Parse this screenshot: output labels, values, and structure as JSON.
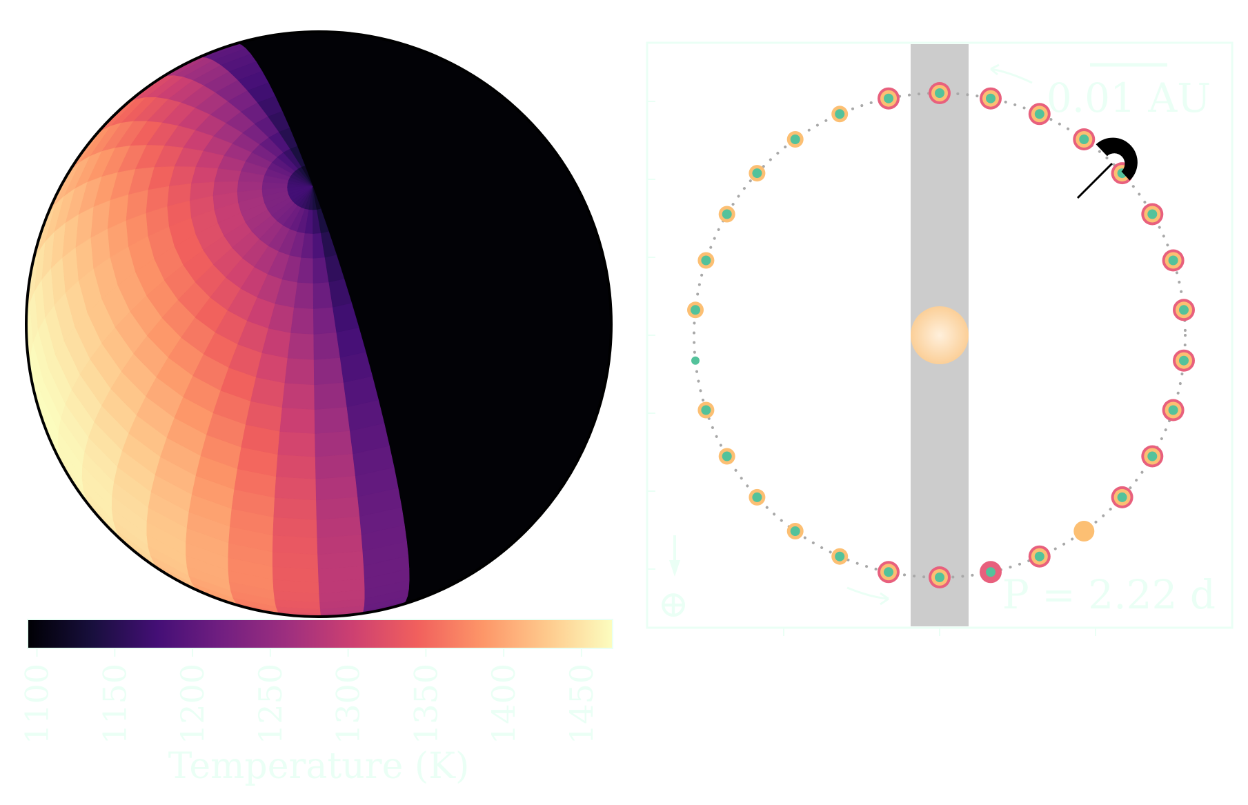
{
  "globe": {
    "colormap": [
      "#000004",
      "#180f3d",
      "#440f76",
      "#721f81",
      "#9e2f7f",
      "#cd4071",
      "#f1605d",
      "#fd9668",
      "#feca8d",
      "#fcfdbf"
    ],
    "night_color": "#020206",
    "outline_color": "#000000"
  },
  "colorbar": {
    "ticks": [
      "1100",
      "1150",
      "1200",
      "1250",
      "1300",
      "1350",
      "1400",
      "1450"
    ],
    "label": "Temperature (K)",
    "min": 1094,
    "max": 1470
  },
  "orbit": {
    "scale_label": "0.01 AU",
    "period_label": "P = 2.22 d",
    "observer_symbol": "⊕",
    "transit_band_color": "#cccccc",
    "star_color": "#fdd9ae",
    "frame_color": "#eafff5",
    "point_colors": {
      "outer": "#e8607d",
      "middle": "#fcbf73",
      "inner": "#53c29b"
    },
    "num_points": 30
  }
}
